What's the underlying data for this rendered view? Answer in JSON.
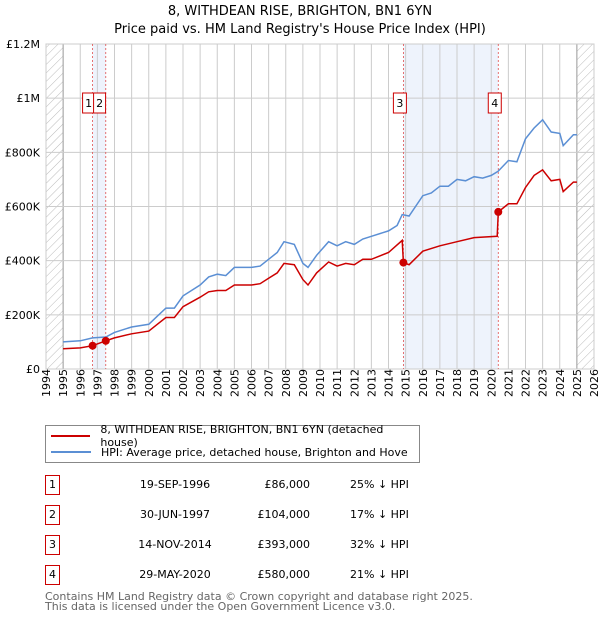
{
  "title_line1": "8, WITHDEAN RISE, BRIGHTON, BN1 6YN",
  "title_line2": "Price paid vs. HM Land Registry's House Price Index (HPI)",
  "chart_data": {
    "type": "line",
    "title": "Price paid vs. HM Land Registry's House Price Index (HPI)",
    "xlim": [
      1994,
      2026
    ],
    "ylim": [
      0,
      1200000
    ],
    "x_ticks": [
      1994,
      1995,
      1996,
      1997,
      1998,
      1999,
      2000,
      2001,
      2002,
      2003,
      2004,
      2005,
      2006,
      2007,
      2008,
      2009,
      2010,
      2011,
      2012,
      2013,
      2014,
      2015,
      2016,
      2017,
      2018,
      2019,
      2020,
      2021,
      2022,
      2023,
      2024,
      2025,
      2026
    ],
    "y_ticks": [
      {
        "v": 0,
        "label": "£0"
      },
      {
        "v": 200000,
        "label": "£200K"
      },
      {
        "v": 400000,
        "label": "£400K"
      },
      {
        "v": 600000,
        "label": "£600K"
      },
      {
        "v": 800000,
        "label": "£800K"
      },
      {
        "v": 1000000,
        "label": "£1M"
      },
      {
        "v": 1200000,
        "label": "£1.2M"
      }
    ],
    "grid": true,
    "colors": {
      "property": "#cc0000",
      "hpi": "#5b8fd4",
      "band": "#eef3fc"
    },
    "series": [
      {
        "name": "8, WITHDEAN RISE, BRIGHTON, BN1 6YN (detached house)",
        "color": "#cc0000",
        "x": [
          1995,
          1996,
          1996.72,
          1997.49,
          1998,
          1999,
          2000,
          2000.5,
          2001,
          2001.5,
          2002,
          2003,
          2003.5,
          2004,
          2004.5,
          2005,
          2006,
          2006.5,
          2007,
          2007.5,
          2007.9,
          2008.5,
          2009,
          2009.3,
          2009.8,
          2010.5,
          2011,
          2011.5,
          2012,
          2012.5,
          2013,
          2014,
          2014.8,
          2014.87,
          2015.2,
          2016,
          2017,
          2018,
          2019,
          2020.35,
          2020.41,
          2021,
          2021.5,
          2022,
          2022.5,
          2023,
          2023.5,
          2024,
          2024.2,
          2024.8,
          2025
        ],
        "y": [
          75000,
          78000,
          86000,
          104000,
          115000,
          130000,
          140000,
          165000,
          190000,
          190000,
          230000,
          265000,
          285000,
          290000,
          290000,
          310000,
          310000,
          315000,
          335000,
          355000,
          390000,
          385000,
          330000,
          310000,
          355000,
          395000,
          380000,
          390000,
          385000,
          405000,
          405000,
          430000,
          475000,
          393000,
          385000,
          435000,
          455000,
          470000,
          485000,
          490000,
          580000,
          610000,
          610000,
          670000,
          715000,
          735000,
          695000,
          700000,
          655000,
          690000,
          690000
        ]
      },
      {
        "name": "HPI: Average price, detached house, Brighton and Hove",
        "color": "#5b8fd4",
        "x": [
          1995,
          1996,
          1996.72,
          1997.49,
          1998,
          1999,
          2000,
          2000.5,
          2001,
          2001.5,
          2002,
          2003,
          2003.5,
          2004,
          2004.5,
          2005,
          2006,
          2006.5,
          2007,
          2007.5,
          2007.9,
          2008.5,
          2009,
          2009.3,
          2009.8,
          2010.5,
          2011,
          2011.5,
          2012,
          2012.5,
          2013,
          2014,
          2014.5,
          2014.8,
          2015.2,
          2016,
          2016.5,
          2017,
          2017.5,
          2018,
          2018.5,
          2019,
          2019.5,
          2020,
          2020.4,
          2021,
          2021.5,
          2022,
          2022.5,
          2023,
          2023.5,
          2024,
          2024.2,
          2024.8,
          2025
        ],
        "y": [
          100000,
          104000,
          115000,
          118000,
          135000,
          155000,
          165000,
          195000,
          225000,
          225000,
          270000,
          310000,
          340000,
          350000,
          345000,
          375000,
          375000,
          380000,
          405000,
          430000,
          470000,
          460000,
          390000,
          375000,
          420000,
          470000,
          455000,
          470000,
          460000,
          480000,
          490000,
          510000,
          530000,
          570000,
          565000,
          640000,
          650000,
          675000,
          675000,
          700000,
          695000,
          710000,
          705000,
          715000,
          730000,
          770000,
          765000,
          850000,
          890000,
          920000,
          875000,
          870000,
          825000,
          865000,
          865000
        ]
      }
    ],
    "sales": [
      {
        "n": "1",
        "x": 1996.72,
        "price": 86000
      },
      {
        "n": "2",
        "x": 1997.49,
        "price": 104000
      },
      {
        "n": "3",
        "x": 2014.87,
        "price": 393000
      },
      {
        "n": "4",
        "x": 2020.41,
        "price": 580000
      }
    ]
  },
  "legend": {
    "property": "8, WITHDEAN RISE, BRIGHTON, BN1 6YN (detached house)",
    "hpi": "HPI: Average price, detached house, Brighton and Hove"
  },
  "transactions": [
    {
      "n": "1",
      "date": "19-SEP-1996",
      "price": "£86,000",
      "hpi": "25% ↓ HPI"
    },
    {
      "n": "2",
      "date": "30-JUN-1997",
      "price": "£104,000",
      "hpi": "17% ↓ HPI"
    },
    {
      "n": "3",
      "date": "14-NOV-2014",
      "price": "£393,000",
      "hpi": "32% ↓ HPI"
    },
    {
      "n": "4",
      "date": "29-MAY-2020",
      "price": "£580,000",
      "hpi": "21% ↓ HPI"
    }
  ],
  "footer": {
    "line1": "Contains HM Land Registry data © Crown copyright and database right 2025.",
    "line2": "This data is licensed under the Open Government Licence v3.0."
  }
}
